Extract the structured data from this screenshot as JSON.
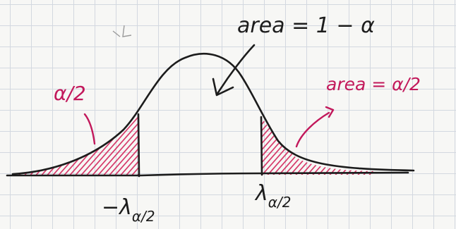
{
  "annotations": {
    "center_area": "area = 1 − α",
    "left_tail": "α/2",
    "right_tail": "area = α/2"
  },
  "axis_labels": {
    "left_critical": "−λ",
    "left_critical_sub": "α/2",
    "right_critical": "λ",
    "right_critical_sub": "α/2"
  },
  "colors": {
    "ink": "#1c1c1c",
    "tail_ink": "#c2185b",
    "grid": "#d3d8e0",
    "paper": "#f7f7f5"
  }
}
